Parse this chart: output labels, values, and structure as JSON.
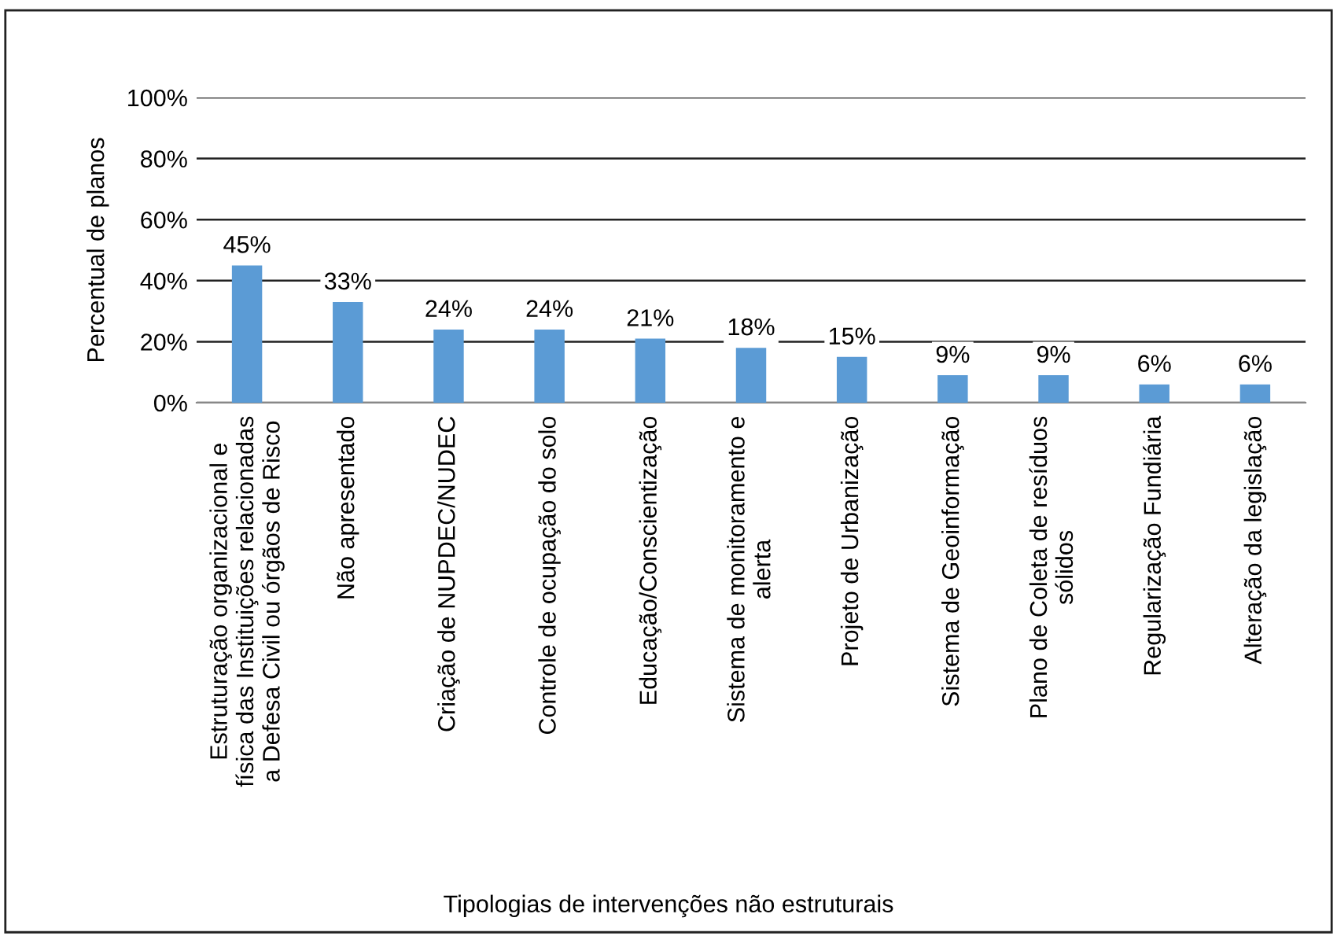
{
  "chart_data": {
    "type": "bar",
    "xlabel": "Tipologias de intervenções não estruturais",
    "ylabel": "Percentual de planos",
    "categories": [
      "Estruturação organizacional e\nfísica das Instituições relacionadas\na Defesa Civil ou órgãos de Risco",
      "Não apresentado",
      "Criação de NUPDEC/NUDEC",
      "Controle de ocupação do solo",
      "Educação/Conscientização",
      "Sistema de monitoramento e\nalerta",
      "Projeto de Urbanização",
      "Sistema de Geoinformação",
      "Plano de Coleta de resíduos\nsólidos",
      "Regularização Fundiária",
      "Alteração da legislação"
    ],
    "values": [
      45,
      33,
      24,
      24,
      21,
      18,
      15,
      9,
      9,
      6,
      6
    ],
    "value_labels": [
      "45%",
      "33%",
      "24%",
      "24%",
      "21%",
      "18%",
      "15%",
      "9%",
      "9%",
      "6%",
      "6%"
    ],
    "color": "#5b9bd5",
    "ylim": [
      0,
      100
    ],
    "yticks": [
      {
        "value": 0,
        "label": "0%"
      },
      {
        "value": 20,
        "label": "20%"
      },
      {
        "value": 40,
        "label": "40%"
      },
      {
        "value": 60,
        "label": "60%"
      },
      {
        "value": 80,
        "label": "80%"
      },
      {
        "value": 100,
        "label": "100%"
      }
    ],
    "grid": "y",
    "legend": false
  }
}
